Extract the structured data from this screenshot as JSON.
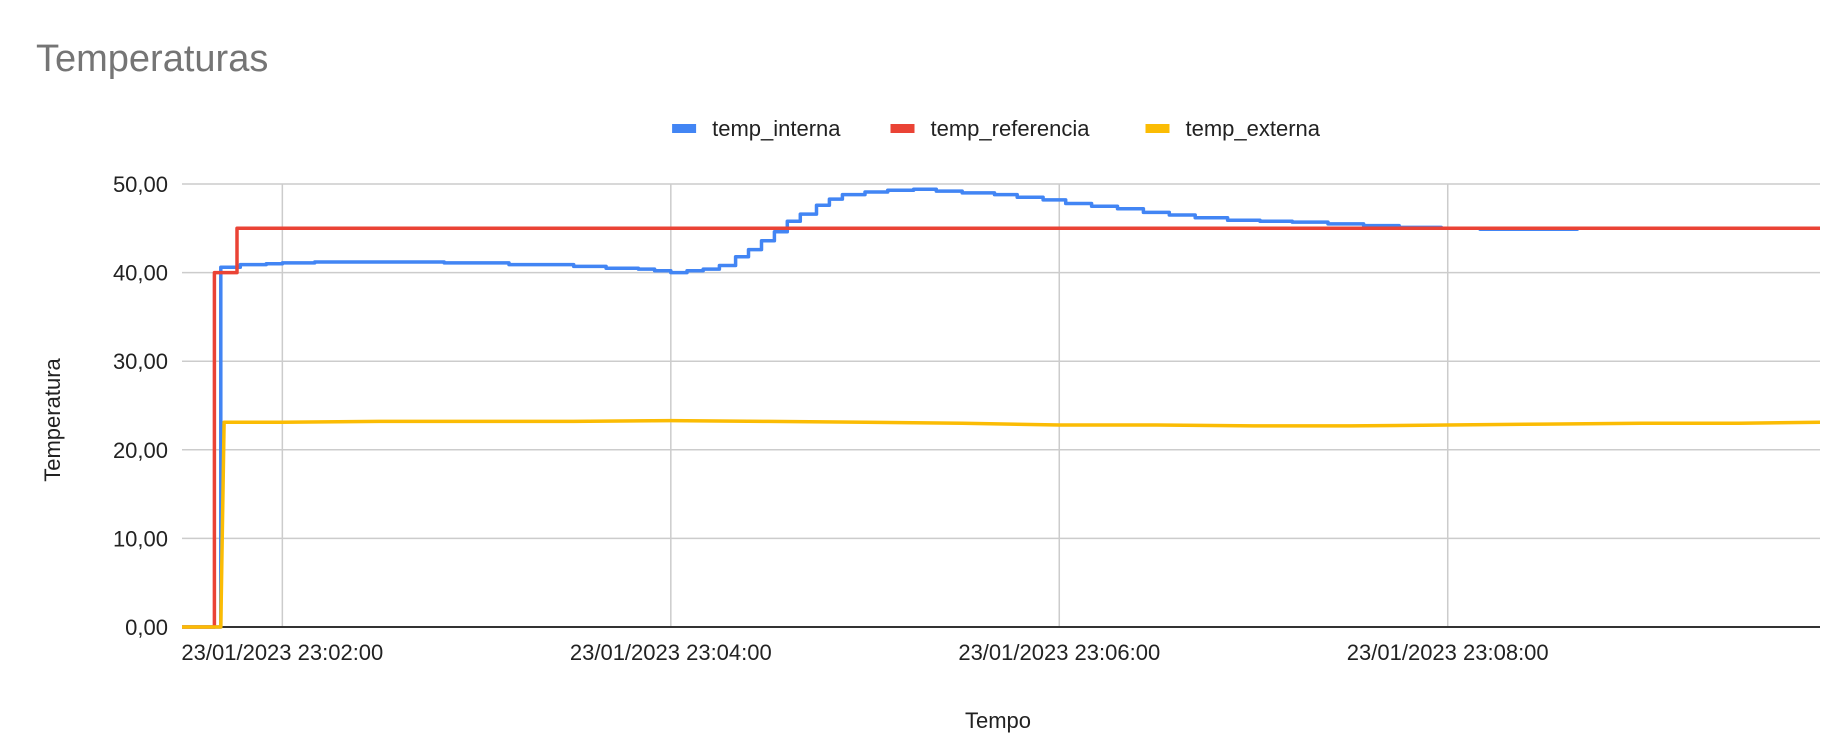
{
  "chart_data": {
    "type": "line",
    "title": "Temperaturas",
    "xlabel": "Tempo",
    "ylabel": "Temperatura",
    "x_unit": "seconds after 23/01/2023 23:01:00",
    "x_ticks": [
      {
        "label": "23/01/2023 23:02:00",
        "value": 60
      },
      {
        "label": "23/01/2023 23:04:00",
        "value": 180
      },
      {
        "label": "23/01/2023 23:06:00",
        "value": 300
      },
      {
        "label": "23/01/2023 23:08:00",
        "value": 420
      }
    ],
    "xlim": [
      29,
      535
    ],
    "y_ticks": [
      {
        "label": "0,00",
        "value": 0
      },
      {
        "label": "10,00",
        "value": 10
      },
      {
        "label": "20,00",
        "value": 20
      },
      {
        "label": "30,00",
        "value": 30
      },
      {
        "label": "40,00",
        "value": 40
      },
      {
        "label": "50,00",
        "value": 50
      }
    ],
    "ylim": [
      0,
      50
    ],
    "grid": true,
    "legend_position": "top",
    "series": [
      {
        "name": "temp_interna",
        "color": "#4285f4",
        "step": true,
        "points": [
          [
            29,
            0
          ],
          [
            40,
            0
          ],
          [
            41,
            40.6
          ],
          [
            47,
            40.9
          ],
          [
            55,
            41.0
          ],
          [
            60,
            41.1
          ],
          [
            70,
            41.2
          ],
          [
            90,
            41.2
          ],
          [
            110,
            41.1
          ],
          [
            130,
            40.9
          ],
          [
            150,
            40.7
          ],
          [
            160,
            40.5
          ],
          [
            170,
            40.4
          ],
          [
            175,
            40.2
          ],
          [
            180,
            40.0
          ],
          [
            185,
            40.2
          ],
          [
            190,
            40.4
          ],
          [
            195,
            40.8
          ],
          [
            200,
            41.8
          ],
          [
            204,
            42.6
          ],
          [
            208,
            43.6
          ],
          [
            212,
            44.6
          ],
          [
            216,
            45.8
          ],
          [
            220,
            46.6
          ],
          [
            225,
            47.6
          ],
          [
            229,
            48.3
          ],
          [
            233,
            48.8
          ],
          [
            240,
            49.1
          ],
          [
            247,
            49.3
          ],
          [
            255,
            49.4
          ],
          [
            262,
            49.2
          ],
          [
            270,
            49.0
          ],
          [
            280,
            48.8
          ],
          [
            287,
            48.5
          ],
          [
            295,
            48.2
          ],
          [
            302,
            47.8
          ],
          [
            310,
            47.5
          ],
          [
            318,
            47.2
          ],
          [
            326,
            46.8
          ],
          [
            334,
            46.5
          ],
          [
            342,
            46.2
          ],
          [
            352,
            45.9
          ],
          [
            362,
            45.8
          ],
          [
            372,
            45.7
          ],
          [
            383,
            45.5
          ],
          [
            394,
            45.3
          ],
          [
            405,
            45.1
          ],
          [
            418,
            45.0
          ],
          [
            430,
            44.9
          ],
          [
            445,
            44.9
          ],
          [
            460,
            45.0
          ],
          [
            480,
            45.0
          ],
          [
            500,
            45.0
          ],
          [
            520,
            45.0
          ],
          [
            535,
            45.0
          ]
        ]
      },
      {
        "name": "temp_referencia",
        "color": "#ea4335",
        "step": true,
        "points": [
          [
            29,
            0
          ],
          [
            38,
            0
          ],
          [
            39,
            40.0
          ],
          [
            45,
            40.0
          ],
          [
            46,
            45.0
          ],
          [
            100,
            45.0
          ],
          [
            200,
            45.0
          ],
          [
            300,
            45.0
          ],
          [
            400,
            45.0
          ],
          [
            500,
            45.0
          ],
          [
            535,
            45.0
          ]
        ]
      },
      {
        "name": "temp_externa",
        "color": "#fbbc04",
        "step": false,
        "points": [
          [
            29,
            0
          ],
          [
            41,
            0
          ],
          [
            42,
            23.1
          ],
          [
            60,
            23.1
          ],
          [
            90,
            23.2
          ],
          [
            120,
            23.2
          ],
          [
            150,
            23.2
          ],
          [
            180,
            23.3
          ],
          [
            210,
            23.2
          ],
          [
            240,
            23.1
          ],
          [
            270,
            23.0
          ],
          [
            300,
            22.8
          ],
          [
            330,
            22.8
          ],
          [
            360,
            22.7
          ],
          [
            390,
            22.7
          ],
          [
            420,
            22.8
          ],
          [
            450,
            22.9
          ],
          [
            480,
            23.0
          ],
          [
            510,
            23.0
          ],
          [
            535,
            23.1
          ]
        ]
      }
    ]
  }
}
